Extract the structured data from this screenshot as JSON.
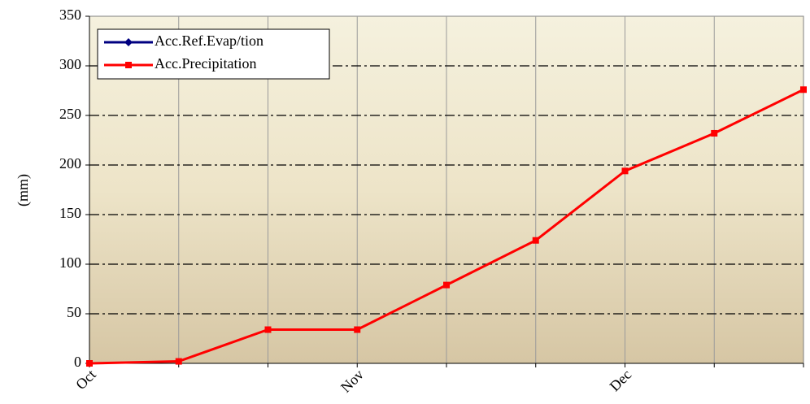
{
  "chart_data": {
    "type": "line",
    "categories": [
      "Oct",
      null,
      null,
      "Nov",
      null,
      null,
      "Dec",
      null,
      null
    ],
    "series": [
      {
        "name": "Acc.Ref.Evap/tion",
        "color": "#000080",
        "values": [
          null,
          null,
          null,
          null,
          null,
          null,
          null,
          null,
          null
        ]
      },
      {
        "name": "Acc.Precipitation",
        "color": "#ff0000",
        "values": [
          0,
          2,
          34,
          34,
          79,
          124,
          194,
          232,
          276
        ]
      }
    ],
    "ylabel": "(mm)",
    "ylim": [
      0,
      350
    ],
    "yticks": [
      0,
      50,
      100,
      150,
      200,
      250,
      300,
      350
    ],
    "grid": true,
    "legend": "upper left"
  }
}
